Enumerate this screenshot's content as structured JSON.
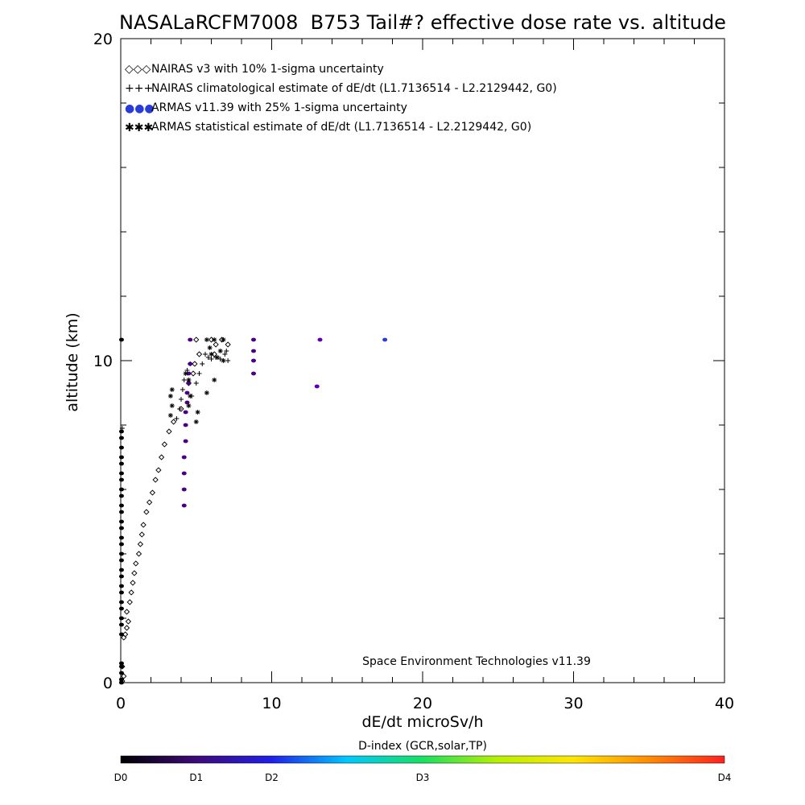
{
  "colors": {
    "nairas_symbol": "#000000",
    "armas_dark": "#4b0082",
    "armas_mid": "#5b00b0",
    "armas_blue": "#2a3cd8",
    "colorbar_stops": [
      "#000000",
      "#3d0a78",
      "#1f1fe8",
      "#00c8ff",
      "#18e060",
      "#b8f000",
      "#ffe600",
      "#ff8c00",
      "#ff2020"
    ]
  },
  "chart_data": {
    "type": "scatter",
    "title": "NASALaRCFM7008  B753 Tail#? effective dose rate vs. altitude",
    "xlabel": "dE/dt microSv/h",
    "ylabel": "altitude (km)",
    "xlim": [
      0,
      40
    ],
    "ylim": [
      0,
      20
    ],
    "x_ticks": [
      "0",
      "10",
      "20",
      "30",
      "40"
    ],
    "y_ticks": [
      "0",
      "10",
      "20"
    ],
    "x_tick_values": [
      0,
      10,
      20,
      30,
      40
    ],
    "y_tick_values": [
      0,
      10,
      20
    ],
    "grid": false,
    "legend_position": "top-left",
    "legend": [
      {
        "marker_text": "◇◇◇",
        "label": "NAIRAS v3 with 10% 1-sigma uncertainty"
      },
      {
        "marker_text": "+++",
        "label": "NAIRAS climatological estimate of dE/dt (L1.7136514 - L2.2129442, G0)"
      },
      {
        "marker_text": "●●●",
        "label": "ARMAS v11.39 with 25% 1-sigma uncertainty"
      },
      {
        "marker_text": "✱✱✱",
        "label": "ARMAS statistical estimate of dE/dt (L1.7136514 - L2.2129442, G0)"
      }
    ],
    "annotation": "Space Environment Technologies v11.39",
    "series": [
      {
        "name": "NAIRAS v3 with 10% 1-sigma uncertainty",
        "marker": "diamond",
        "points": [
          [
            0.1,
            0.05
          ],
          [
            0.2,
            0.2
          ],
          [
            0.1,
            0.5
          ],
          [
            0.2,
            1.4
          ],
          [
            0.3,
            1.5
          ],
          [
            0.4,
            1.7
          ],
          [
            0.5,
            1.9
          ],
          [
            0.4,
            2.2
          ],
          [
            0.6,
            2.5
          ],
          [
            0.7,
            2.8
          ],
          [
            0.8,
            3.1
          ],
          [
            0.9,
            3.4
          ],
          [
            1.0,
            3.7
          ],
          [
            1.2,
            4.0
          ],
          [
            1.3,
            4.3
          ],
          [
            1.4,
            4.6
          ],
          [
            1.5,
            4.9
          ],
          [
            1.7,
            5.3
          ],
          [
            1.9,
            5.6
          ],
          [
            2.1,
            5.9
          ],
          [
            2.3,
            6.3
          ],
          [
            2.5,
            6.6
          ],
          [
            2.7,
            7.0
          ],
          [
            2.9,
            7.4
          ],
          [
            3.2,
            7.8
          ],
          [
            3.5,
            8.1
          ],
          [
            4.0,
            8.5
          ],
          [
            4.5,
            9.3
          ],
          [
            4.8,
            9.6
          ],
          [
            4.9,
            9.9
          ],
          [
            5.2,
            10.2
          ],
          [
            6.2,
            10.2
          ],
          [
            6.3,
            10.5
          ],
          [
            7.1,
            10.5
          ],
          [
            5.0,
            10.65
          ],
          [
            6.0,
            10.65
          ],
          [
            6.7,
            10.65
          ]
        ]
      },
      {
        "name": "NAIRAS climatological estimate of dE/dt",
        "marker": "plus",
        "points": [
          [
            0.1,
            7.9
          ],
          [
            3.7,
            8.2
          ],
          [
            3.9,
            8.5
          ],
          [
            4.0,
            8.8
          ],
          [
            4.1,
            9.1
          ],
          [
            4.2,
            9.4
          ],
          [
            4.4,
            9.7
          ],
          [
            4.6,
            9.9
          ],
          [
            4.7,
            8.9
          ],
          [
            5.0,
            9.3
          ],
          [
            5.2,
            9.6
          ],
          [
            5.4,
            9.9
          ],
          [
            5.6,
            10.2
          ],
          [
            5.8,
            10.1
          ],
          [
            6.0,
            10.05
          ],
          [
            6.3,
            10.1
          ],
          [
            6.6,
            10.05
          ],
          [
            6.9,
            10.2
          ],
          [
            7.0,
            10.3
          ],
          [
            7.1,
            10.0
          ]
        ]
      },
      {
        "name": "ARMAS v11.39 with 25% 1-sigma uncertainty",
        "marker": "dot",
        "points": [
          [
            0.05,
            0.0
          ],
          [
            0.05,
            0.1
          ],
          [
            0.05,
            0.3
          ],
          [
            0.05,
            0.5
          ],
          [
            0.05,
            0.6
          ],
          [
            0.05,
            1.5
          ],
          [
            0.05,
            1.8
          ],
          [
            0.05,
            2.0
          ],
          [
            0.05,
            2.3
          ],
          [
            0.05,
            2.5
          ],
          [
            0.05,
            2.8
          ],
          [
            0.05,
            3.0
          ],
          [
            0.05,
            3.3
          ],
          [
            0.05,
            3.5
          ],
          [
            0.05,
            3.8
          ],
          [
            0.05,
            4.0
          ],
          [
            0.05,
            4.3
          ],
          [
            0.05,
            4.5
          ],
          [
            0.05,
            4.8
          ],
          [
            0.05,
            5.0
          ],
          [
            0.05,
            5.3
          ],
          [
            0.05,
            5.5
          ],
          [
            0.05,
            5.8
          ],
          [
            0.05,
            6.0
          ],
          [
            0.05,
            6.3
          ],
          [
            0.05,
            6.5
          ],
          [
            0.05,
            6.8
          ],
          [
            0.05,
            7.0
          ],
          [
            0.05,
            7.3
          ],
          [
            0.05,
            7.6
          ],
          [
            0.05,
            7.8
          ],
          [
            0.05,
            10.65
          ],
          [
            4.2,
            5.5
          ],
          [
            4.2,
            6.0
          ],
          [
            4.2,
            6.5
          ],
          [
            4.2,
            7.0
          ],
          [
            4.3,
            7.5
          ],
          [
            4.3,
            8.0
          ],
          [
            4.3,
            8.4
          ],
          [
            4.4,
            8.7
          ],
          [
            4.4,
            9.0
          ],
          [
            4.5,
            9.3
          ],
          [
            4.5,
            9.6
          ],
          [
            4.6,
            9.9
          ],
          [
            4.6,
            10.65
          ],
          [
            8.8,
            9.6
          ],
          [
            8.8,
            10.0
          ],
          [
            8.8,
            10.3
          ],
          [
            8.8,
            10.65
          ],
          [
            13.0,
            9.2
          ],
          [
            13.2,
            10.65
          ],
          [
            17.5,
            10.65
          ]
        ]
      },
      {
        "name": "ARMAS statistical estimate of dE/dt",
        "marker": "star",
        "points": [
          [
            3.3,
            8.3
          ],
          [
            3.4,
            8.6
          ],
          [
            3.3,
            8.9
          ],
          [
            3.4,
            9.1
          ],
          [
            4.3,
            9.6
          ],
          [
            4.5,
            9.4
          ],
          [
            4.5,
            8.6
          ],
          [
            4.6,
            8.9
          ],
          [
            5.0,
            8.1
          ],
          [
            5.1,
            8.4
          ],
          [
            5.7,
            9.0
          ],
          [
            5.9,
            10.4
          ],
          [
            6.0,
            10.2
          ],
          [
            6.2,
            9.4
          ],
          [
            6.4,
            10.1
          ],
          [
            6.6,
            10.3
          ],
          [
            6.8,
            10.0
          ],
          [
            5.7,
            10.65
          ],
          [
            6.2,
            10.65
          ],
          [
            6.8,
            10.65
          ]
        ]
      }
    ],
    "colorbar": {
      "title": "D-index (GCR,solar,TP)",
      "labels": [
        "D0",
        "D1",
        "D2",
        "D3",
        "D4"
      ],
      "label_values": [
        0,
        0.125,
        0.25,
        0.5,
        1.0
      ]
    }
  }
}
